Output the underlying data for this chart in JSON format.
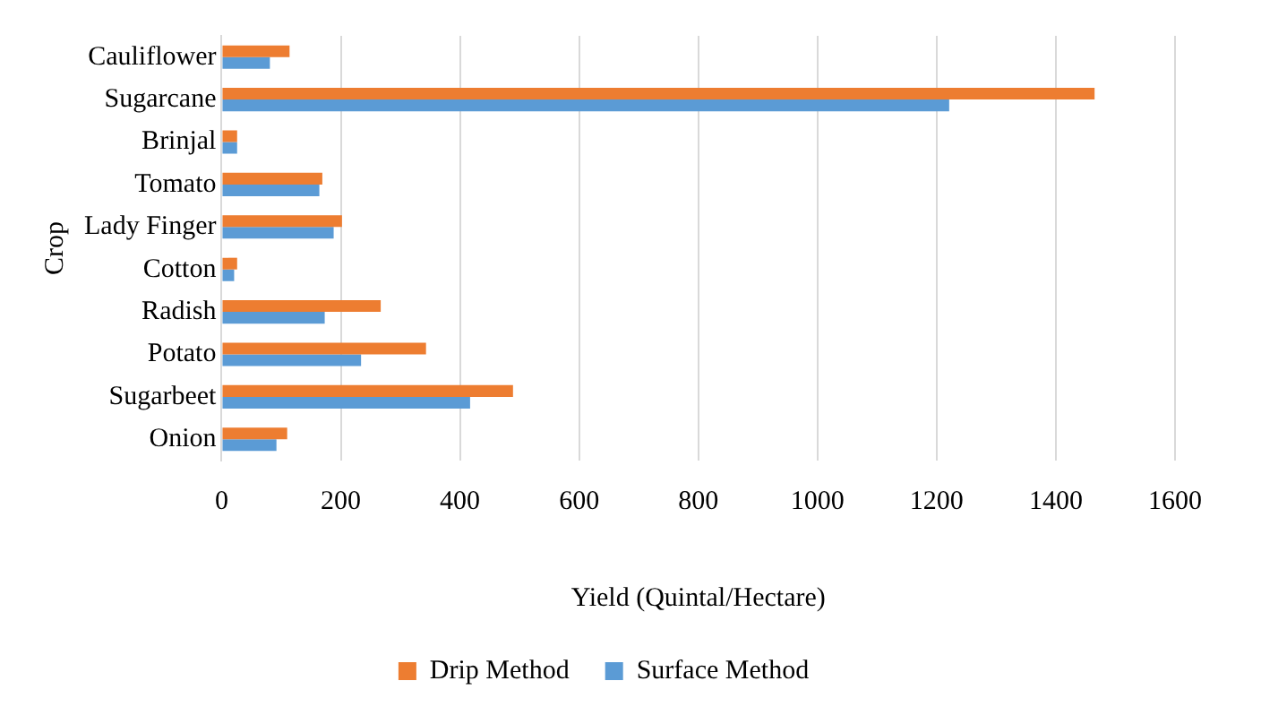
{
  "chart_data": {
    "type": "bar",
    "orientation": "horizontal",
    "xlabel": "Yield (Quintal/Hectare)",
    "ylabel": "Crop",
    "categories": [
      "Cauliflower",
      "Sugarcane",
      "Brinjal",
      "Tomato",
      "Lady Finger",
      "Cotton",
      "Radish",
      "Potato",
      "Sugarbeet",
      "Onion"
    ],
    "series": [
      {
        "name": "Drip Method",
        "color": "#ed7d31",
        "values": [
          114,
          1465,
          26,
          169,
          202,
          26,
          267,
          343,
          489,
          110
        ]
      },
      {
        "name": "Surface Method",
        "color": "#5b9bd5",
        "values": [
          81,
          1221,
          26,
          164,
          188,
          21,
          173,
          234,
          417,
          92
        ]
      }
    ],
    "xlim": [
      0,
      1600
    ],
    "xticks": [
      0,
      200,
      400,
      600,
      800,
      1000,
      1200,
      1400,
      1600
    ],
    "grid": "x",
    "legend": "bottom"
  }
}
